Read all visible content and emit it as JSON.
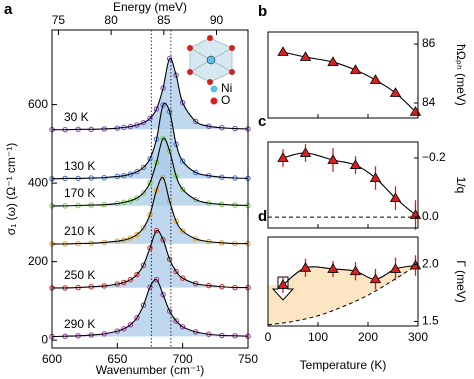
{
  "chart_data": [
    {
      "type": "spectra",
      "panel_label": "a",
      "xlabel": "Wavenumber (cm⁻¹)",
      "ylabel": "σ₁ (ω) (Ω⁻¹ cm⁻¹)",
      "x2label": "Energy (meV)",
      "x": [
        600,
        610,
        620,
        630,
        640,
        650,
        655,
        660,
        665,
        670,
        675,
        680,
        685,
        690,
        695,
        700,
        710,
        720,
        730,
        740,
        750
      ],
      "series": [
        {
          "name": "30 K",
          "color": "#7b3fc4",
          "values": [
            536,
            536,
            537,
            537,
            538,
            540,
            542,
            544,
            548,
            554,
            565,
            589,
            642,
            717,
            675,
            605,
            557,
            545,
            541,
            539,
            538
          ]
        },
        {
          "name": "130 K",
          "color": "#3a6fd8",
          "values": [
            411,
            412,
            412,
            413,
            414,
            417,
            419,
            423,
            429,
            440,
            462,
            512,
            599,
            582,
            499,
            456,
            427,
            419,
            415,
            413,
            412
          ]
        },
        {
          "name": "170 K",
          "color": "#6ccf3a",
          "values": [
            342,
            342,
            343,
            344,
            345,
            348,
            351,
            355,
            362,
            375,
            401,
            453,
            514,
            482,
            418,
            384,
            358,
            349,
            346,
            344,
            343
          ]
        },
        {
          "name": "210 K",
          "color": "#e8a317",
          "values": [
            245,
            245,
            246,
            247,
            249,
            252,
            255,
            260,
            269,
            286,
            320,
            382,
            414,
            354,
            303,
            278,
            258,
            251,
            248,
            246,
            246
          ]
        },
        {
          "name": "250 K",
          "color": "#d62020",
          "values": [
            133,
            133,
            134,
            136,
            138,
            143,
            147,
            154,
            167,
            191,
            235,
            279,
            256,
            206,
            175,
            158,
            144,
            139,
            136,
            134,
            134
          ]
        },
        {
          "name": "290 K",
          "color": "#9b2f9b",
          "values": [
            9,
            10,
            11,
            13,
            16,
            23,
            29,
            39,
            57,
            89,
            135,
            154,
            116,
            74,
            49,
            34,
            21,
            15,
            12,
            11,
            10
          ]
        }
      ],
      "reference_lines": [
        676,
        691
      ],
      "xlim": [
        600,
        750
      ],
      "xticks": [
        600,
        650,
        700,
        750
      ],
      "x2lim": [
        74.39,
        92.99
      ],
      "x2ticks": [
        75,
        80,
        85,
        90
      ],
      "ylim": [
        -20,
        790
      ],
      "yticks": [
        0,
        200,
        400,
        600
      ],
      "inset_labels": [
        "Ni",
        "O"
      ]
    },
    {
      "type": "scatter",
      "panel_label": "b",
      "ylabel": "ħΩₚₕ (meV)",
      "color": "#d62020",
      "x": [
        30,
        75,
        130,
        175,
        215,
        255,
        295
      ],
      "values": [
        85.73,
        85.56,
        85.39,
        85.12,
        84.78,
        84.34,
        83.7
      ],
      "xlim": [
        0,
        300
      ],
      "xticks": [
        0,
        100,
        200,
        300
      ],
      "ylim": [
        83.49,
        86.41
      ],
      "yticks": [
        84,
        86
      ]
    },
    {
      "type": "scatter",
      "panel_label": "c",
      "ylabel": "1/q",
      "color": "#d62020",
      "x": [
        30,
        75,
        130,
        175,
        215,
        255,
        295
      ],
      "values": [
        -0.2,
        -0.217,
        -0.193,
        -0.176,
        -0.132,
        -0.064,
        -0.007
      ],
      "errors": [
        0.03,
        0.03,
        0.04,
        0.03,
        0.04,
        0.04,
        0.05
      ],
      "hline": 0,
      "xlim": [
        0,
        300
      ],
      "xticks": [
        0,
        100,
        200,
        300
      ],
      "ylim": [
        0.037,
        -0.254
      ],
      "yticks": [
        {
          "value": -0.2,
          "label": "−0.2"
        },
        {
          "value": 0,
          "label": "0.0"
        }
      ]
    },
    {
      "type": "scatter",
      "panel_label": "d",
      "ylabel": "Γ (meV)",
      "xlabel": "Temperature (K)",
      "color": "#d62020",
      "x": [
        30,
        75,
        130,
        175,
        215,
        255,
        295
      ],
      "values": [
        1.82,
        1.97,
        1.96,
        1.94,
        1.87,
        1.96,
        1.99
      ],
      "errors": [
        0.07,
        0.08,
        0.07,
        0.08,
        0.09,
        0.1,
        0.09
      ],
      "lower_bound": {
        "x": [
          0,
          50,
          100,
          150,
          200,
          250,
          300
        ],
        "values": [
          1.47,
          1.5,
          1.55,
          1.63,
          1.73,
          1.86,
          2.0
        ]
      },
      "xlim": [
        0,
        300
      ],
      "xticks": [
        0,
        100,
        200,
        300
      ],
      "ylim": [
        1.46,
        2.24
      ],
      "yticks": [
        {
          "value": 1.5,
          "label": "1.5"
        },
        {
          "value": 2.0,
          "label": "2.0"
        }
      ]
    }
  ]
}
